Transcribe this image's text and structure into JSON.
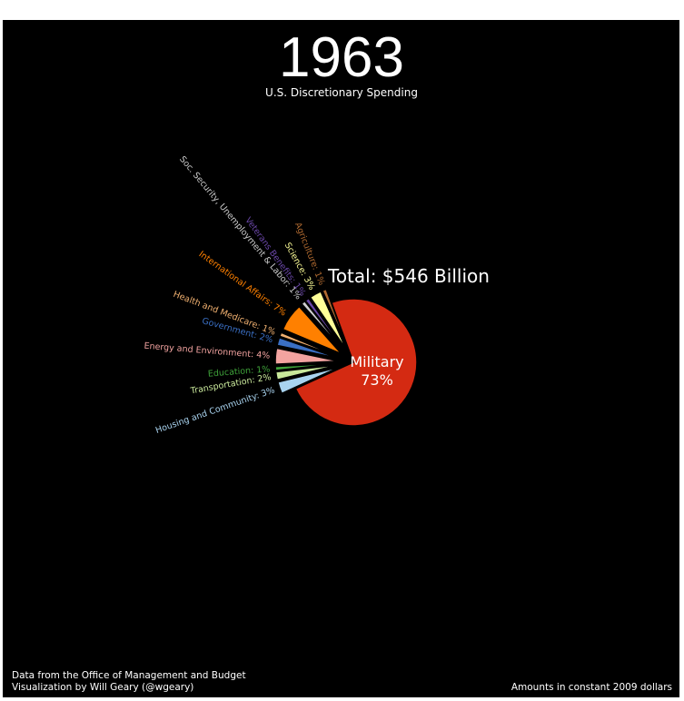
{
  "chart_data": {
    "type": "pie",
    "title": "1963",
    "subtitle": "U.S. Discretionary Spending",
    "total_label": "Total: $546 Billion",
    "categories": [
      "Military",
      "Housing and Community:",
      "Transportation:",
      "Education:",
      "Energy and Environment:",
      "Government:",
      "Health and Medicare:",
      "International Affairs:",
      "Soc. Security, Unemployment & Labor:",
      "Veterans Benefits:",
      "Science:",
      "Agriculture:"
    ],
    "values": [
      73,
      3,
      2,
      1,
      4,
      2,
      1,
      7,
      1,
      1,
      3,
      1
    ],
    "value_labels": [
      "73%",
      "3%",
      "2%",
      "1%",
      "4%",
      "2%",
      "1%",
      "7%",
      "1%",
      "1%",
      "3%",
      "1%"
    ],
    "colors": [
      "#d42a12",
      "#a9d3ef",
      "#c9e89b",
      "#3fa33a",
      "#f2a3a0",
      "#3a6fc4",
      "#f0b070",
      "#ff8000",
      "#cfcfcf",
      "#6a47a8",
      "#ffff99",
      "#b06a30"
    ],
    "notes": [
      "Data from the Office of Management and Budget",
      "Visualization by Will Geary (@wgeary)",
      "Amounts in constant 2009 dollars"
    ]
  }
}
